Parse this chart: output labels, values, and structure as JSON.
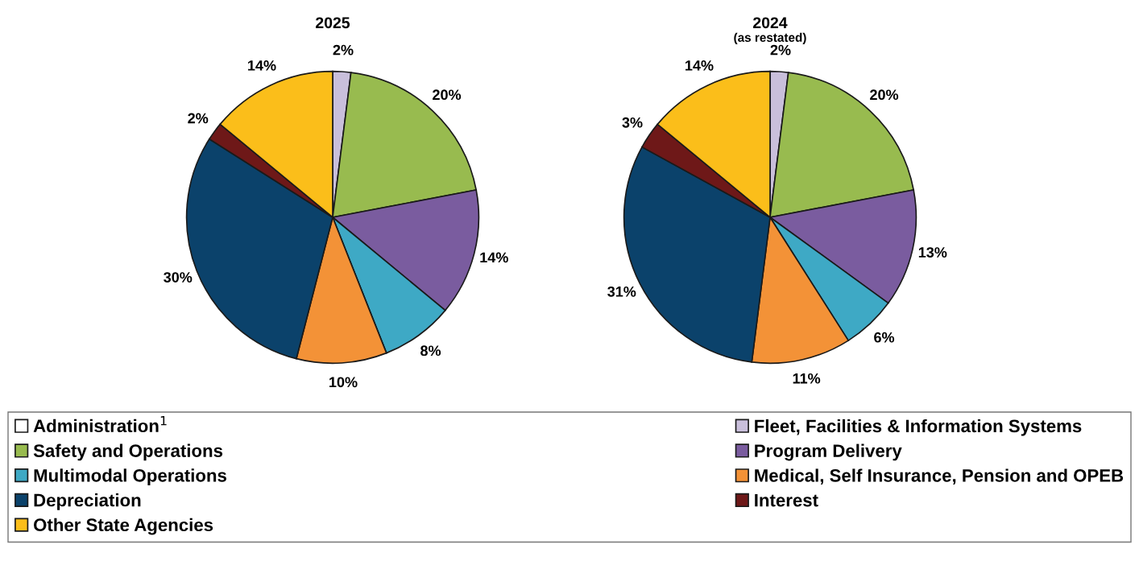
{
  "chart_data": [
    {
      "type": "pie",
      "title": "2025",
      "legend": "bottom",
      "categories": [
        "Administration$^{1}$",
        "Fleet, Facilities & Information Systems",
        "Safety and Operations",
        "Program Delivery",
        "Multimodal Operations",
        "Medical, Self Insurance, Pension and OPEB",
        "Depreciation",
        "Interest",
        "Other State Agencies"
      ],
      "values": [
        0,
        2,
        20,
        14,
        8,
        10,
        30,
        2,
        14
      ],
      "value_labels": [
        null,
        "2%",
        "20%",
        "14%",
        "8%",
        "10%",
        "30%",
        "2%",
        "14%"
      ],
      "colors": [
        "#ffffff",
        "#c9bfdb",
        "#98bb4f",
        "#7a5c9f",
        "#3ea9c5",
        "#f39237",
        "#0b426b",
        "#6e1818",
        "#fbbe1a"
      ]
    },
    {
      "type": "pie",
      "title": "2024",
      "subtitle": "(as restated)",
      "values": [
        0,
        2,
        20,
        13,
        6,
        11,
        31,
        3,
        14
      ],
      "value_labels": [
        null,
        "2%",
        "20%",
        "13%",
        "6%",
        "11%",
        "31%",
        "3%",
        "14%"
      ],
      "colors": [
        "#ffffff",
        "#c9bfdb",
        "#98bb4f",
        "#7a5c9f",
        "#3ea9c5",
        "#f39237",
        "#0b426b",
        "#6e1818",
        "#fbbe1a"
      ]
    }
  ]
}
